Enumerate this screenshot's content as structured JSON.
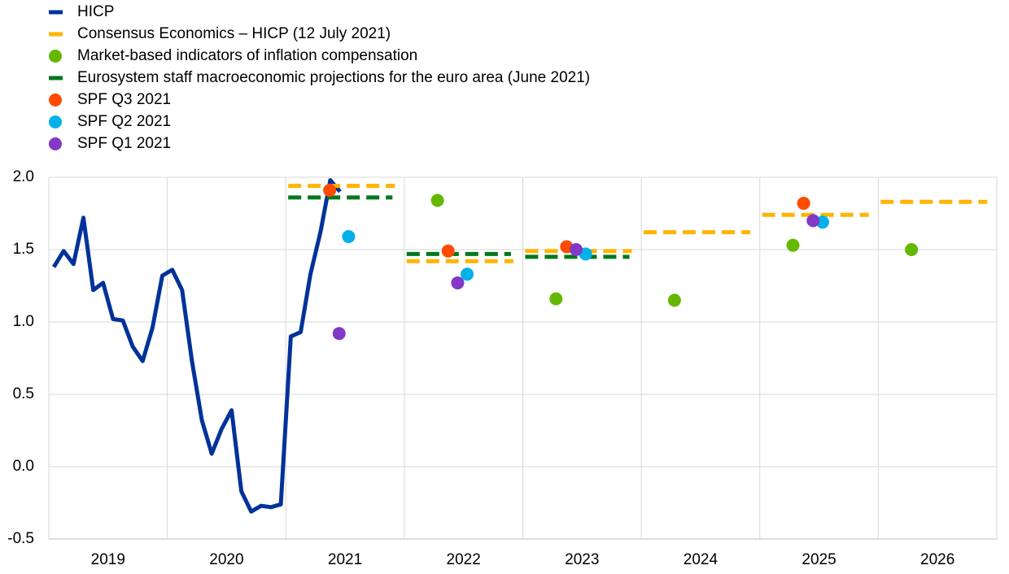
{
  "chart_data": {
    "type": "line",
    "xlim": [
      2019,
      2027
    ],
    "xticks": [
      2019,
      2020,
      2021,
      2022,
      2023,
      2024,
      2025,
      2026
    ],
    "ylim": [
      -0.5,
      2.0
    ],
    "yticks": [
      -0.5,
      {
        "value": 0,
        "label": "0.0"
      },
      0.5,
      {
        "value": 1,
        "label": "1.0"
      },
      1.5,
      {
        "value": 2,
        "label": "2.0"
      }
    ],
    "grid": true,
    "legend": "top-left",
    "series": [
      {
        "name": "HICP",
        "type": "line",
        "color": "#003299",
        "x": [
          2019.042,
          2019.125,
          2019.208,
          2019.292,
          2019.375,
          2019.458,
          2019.542,
          2019.625,
          2019.708,
          2019.792,
          2019.875,
          2019.958,
          2020.042,
          2020.125,
          2020.208,
          2020.292,
          2020.375,
          2020.458,
          2020.542,
          2020.625,
          2020.708,
          2020.792,
          2020.875,
          2020.958,
          2021.042,
          2021.125,
          2021.208,
          2021.292,
          2021.375,
          2021.458
        ],
        "values": [
          1.38,
          1.49,
          1.4,
          1.72,
          1.22,
          1.27,
          1.02,
          1.01,
          0.83,
          0.73,
          0.96,
          1.32,
          1.36,
          1.22,
          0.73,
          0.32,
          0.09,
          0.26,
          0.39,
          -0.17,
          -0.31,
          -0.27,
          -0.28,
          -0.26,
          0.9,
          0.93,
          1.33,
          1.62,
          1.98,
          1.9
        ]
      },
      {
        "name": "Consensus Economics – HICP (12 July 2021)",
        "type": "dash",
        "color": "#ffb400",
        "x": [
          2021,
          2022,
          2023,
          2024,
          2025,
          2026
        ],
        "values": [
          1.94,
          1.42,
          1.49,
          1.62,
          1.74,
          1.83
        ]
      },
      {
        "name": "Market-based indicators of inflation compensation",
        "type": "scatter",
        "color": "#65b800",
        "x": [
          2022,
          2023,
          2024,
          2025,
          2026
        ],
        "values": [
          1.84,
          1.16,
          1.15,
          1.53,
          1.5
        ]
      },
      {
        "name": "Eurosystem staff macroeconomic projections for the euro area (June 2021)",
        "type": "dash",
        "color": "#00781e",
        "x": [
          2021,
          2022,
          2023
        ],
        "values": [
          1.86,
          1.47,
          1.45
        ]
      },
      {
        "name": "SPF Q3 2021",
        "type": "scatter",
        "color": "#ff4b00",
        "x": [
          2021,
          2022,
          2023,
          2025
        ],
        "values": [
          1.91,
          1.49,
          1.52,
          1.82
        ]
      },
      {
        "name": "SPF Q2 2021",
        "type": "scatter",
        "color": "#00b1ea",
        "x": [
          2021,
          2022,
          2023,
          2025
        ],
        "values": [
          1.59,
          1.33,
          1.47,
          1.69
        ]
      },
      {
        "name": "SPF Q1 2021",
        "type": "scatter",
        "color": "#8139c6",
        "x": [
          2021,
          2022,
          2023,
          2025
        ],
        "values": [
          0.92,
          1.27,
          1.5,
          1.7
        ]
      }
    ]
  }
}
